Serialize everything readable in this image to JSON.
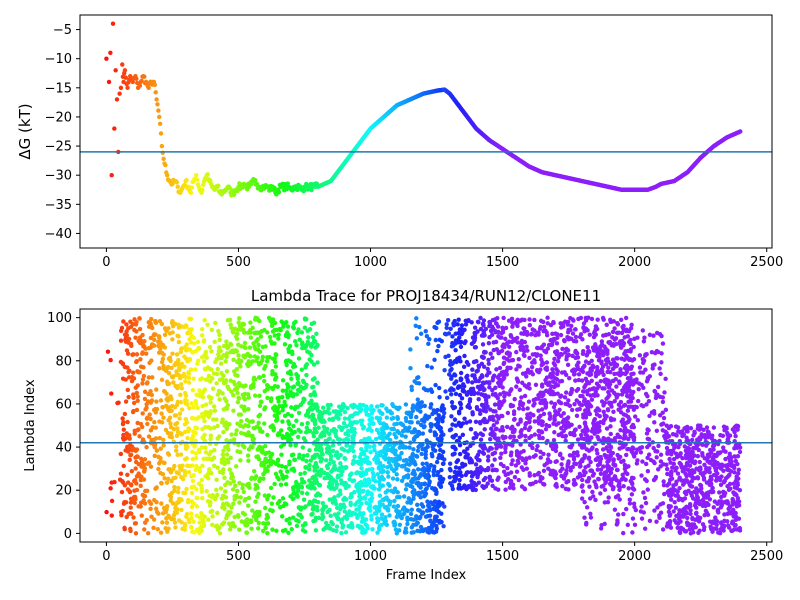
{
  "chart_data": [
    {
      "type": "scatter",
      "title": "",
      "xlabel": "",
      "ylabel": "ΔG (kT)",
      "xlim": [
        -100,
        2520
      ],
      "ylim": [
        -42.5,
        -2.5
      ],
      "xticks": [
        0,
        500,
        1000,
        1500,
        2000,
        2500
      ],
      "yticks": [
        -40,
        -35,
        -30,
        -25,
        -20,
        -15,
        -10,
        -5
      ],
      "hline": -26,
      "hline_color": "#1f77b4",
      "colormap": "rainbow (red to violet with increasing frame)",
      "grid": false,
      "x": [
        0,
        10,
        15,
        20,
        25,
        30,
        35,
        40,
        45,
        50,
        55,
        60,
        65,
        70,
        80,
        90,
        100,
        110,
        120,
        130,
        140,
        150,
        160,
        170,
        180,
        190,
        200,
        210,
        220,
        230,
        240,
        250,
        260,
        270,
        280,
        290,
        300,
        310,
        320,
        330,
        340,
        350,
        360,
        370,
        380,
        390,
        400,
        410,
        420,
        430,
        440,
        450,
        460,
        470,
        480,
        490,
        500,
        510,
        520,
        530,
        540,
        550,
        560,
        570,
        580,
        590,
        600,
        610,
        620,
        630,
        640,
        650,
        660,
        670,
        680,
        690,
        700,
        710,
        720,
        730,
        740,
        750,
        760,
        770,
        780,
        790,
        800,
        850,
        900,
        950,
        1000,
        1050,
        1100,
        1150,
        1200,
        1250,
        1280,
        1300,
        1350,
        1400,
        1450,
        1500,
        1550,
        1600,
        1650,
        1700,
        1750,
        1800,
        1850,
        1900,
        1950,
        2000,
        2050,
        2080,
        2100,
        2150,
        2200,
        2250,
        2300,
        2350,
        2400
      ],
      "y": [
        -10,
        -14,
        -9,
        -30,
        -4,
        -22,
        -12,
        -17,
        -26,
        -16,
        -15,
        -11,
        -14,
        -12,
        -15,
        -13,
        -14,
        -13,
        -15,
        -14,
        -13,
        -14,
        -15,
        -14,
        -14,
        -17,
        -20,
        -25,
        -28,
        -30,
        -31,
        -31.5,
        -31,
        -32,
        -33,
        -32,
        -31,
        -32,
        -33,
        -31,
        -30,
        -32,
        -33,
        -31,
        -30,
        -31,
        -32,
        -32.5,
        -32,
        -33,
        -33,
        -32.5,
        -32,
        -33,
        -33,
        -32.5,
        -32,
        -32,
        -31.5,
        -32,
        -32,
        -31.5,
        -31,
        -31.5,
        -32,
        -32,
        -32,
        -32,
        -32.5,
        -32,
        -33,
        -32.5,
        -32,
        -32,
        -32,
        -32,
        -32.5,
        -32,
        -32,
        -32,
        -32.5,
        -32,
        -32,
        -32,
        -32,
        -32,
        -32,
        -31,
        -28,
        -25,
        -22,
        -20,
        -18,
        -17,
        -16,
        -15.5,
        -15.3,
        -16,
        -19,
        -22,
        -24,
        -25.5,
        -27,
        -28.5,
        -29.5,
        -30,
        -30.5,
        -31,
        -31.5,
        -32,
        -32.5,
        -32.5,
        -32.5,
        -32,
        -31.5,
        -31,
        -29.5,
        -27,
        -25,
        -23.5,
        -22.5
      ]
    },
    {
      "type": "scatter",
      "title": "Lambda Trace for PROJ18434/RUN12/CLONE11",
      "xlabel": "Frame Index",
      "ylabel": "Lambda Index",
      "xlim": [
        -100,
        2520
      ],
      "ylim": [
        -4,
        104
      ],
      "xticks": [
        0,
        500,
        1000,
        1500,
        2000,
        2500
      ],
      "yticks": [
        0,
        20,
        40,
        60,
        80,
        100
      ],
      "hline": 42,
      "hline_color": "#1f77b4",
      "colormap": "rainbow (red to violet with increasing frame)",
      "grid": false,
      "regions": [
        {
          "x_range": [
            0,
            60
          ],
          "y_range": [
            5,
            100
          ],
          "density": "sparse"
        },
        {
          "x_range": [
            60,
            800
          ],
          "y_range": [
            0,
            100
          ],
          "density": "dense"
        },
        {
          "x_range": [
            780,
            1280
          ],
          "y_range": [
            0,
            60
          ],
          "density": "dense"
        },
        {
          "x_range": [
            1150,
            1300
          ],
          "y_range": [
            60,
            100
          ],
          "density": "sparse"
        },
        {
          "x_range": [
            1300,
            2000
          ],
          "y_range": [
            20,
            100
          ],
          "density": "dense"
        },
        {
          "x_range": [
            1800,
            2120
          ],
          "y_range": [
            0,
            95
          ],
          "density": "medium"
        },
        {
          "x_range": [
            2120,
            2400
          ],
          "y_range": [
            0,
            50
          ],
          "density": "dense"
        }
      ]
    }
  ]
}
